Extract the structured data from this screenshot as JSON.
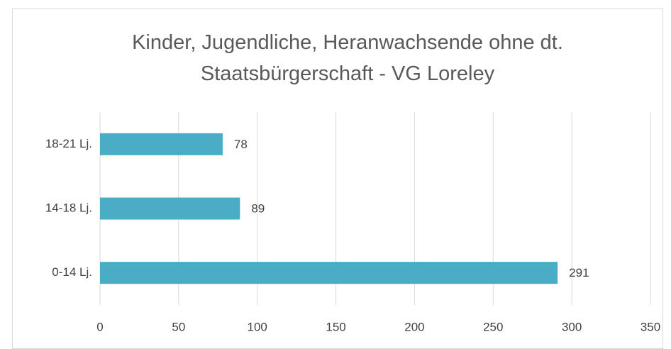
{
  "chart_data": {
    "type": "bar",
    "orientation": "horizontal",
    "title": "Kinder, Jugendliche, Heranwachsende ohne dt. Staatsbürgerschaft - VG Loreley",
    "categories": [
      "0-14 Lj.",
      "14-18 Lj.",
      "18-21 Lj."
    ],
    "values": [
      291,
      89,
      78
    ],
    "color": "#4bacc6",
    "xlim": [
      0,
      350
    ],
    "xticks": [
      0,
      50,
      100,
      150,
      200,
      250,
      300,
      350
    ],
    "grid": true
  }
}
